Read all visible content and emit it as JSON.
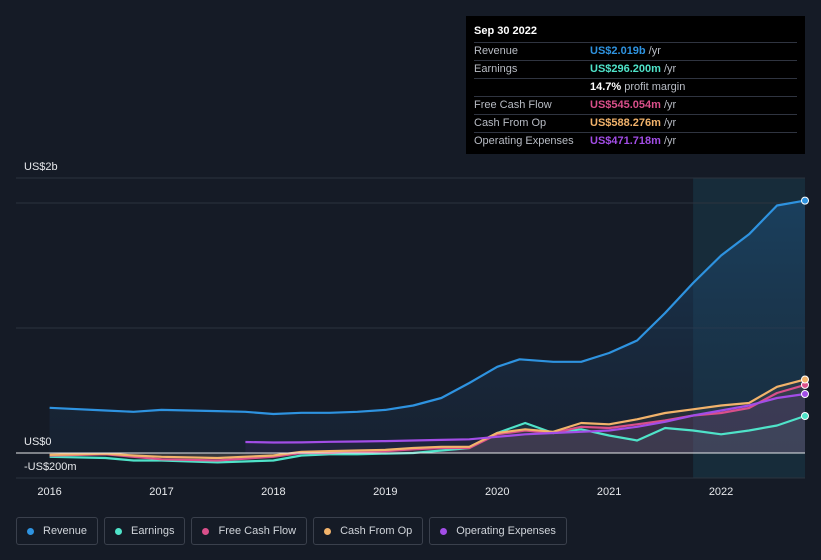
{
  "tooltip": {
    "date": "Sep 30 2022",
    "rows": [
      {
        "label": "Revenue",
        "value": "US$2.019b",
        "unit": "/yr",
        "color": "#2e93e0"
      },
      {
        "label": "Earnings",
        "value": "US$296.200m",
        "unit": "/yr",
        "color": "#4fe3c9"
      },
      {
        "label": "",
        "value": "14.7%",
        "unit": "profit margin",
        "color": "#ffffff"
      },
      {
        "label": "Free Cash Flow",
        "value": "US$545.054m",
        "unit": "/yr",
        "color": "#d94f8a"
      },
      {
        "label": "Cash From Op",
        "value": "US$588.276m",
        "unit": "/yr",
        "color": "#f2b36b"
      },
      {
        "label": "Operating Expenses",
        "value": "US$471.718m",
        "unit": "/yr",
        "color": "#a24de6"
      }
    ]
  },
  "chart_data": {
    "type": "line",
    "ylabel_top": "US$2b",
    "ylabel_zero": "US$0",
    "ylabel_bottom": "-US$200m",
    "xticks": [
      "2016",
      "2017",
      "2018",
      "2019",
      "2020",
      "2021",
      "2022"
    ],
    "xtick_values": [
      2016,
      2017,
      2018,
      2019,
      2020,
      2021,
      2022
    ],
    "xlim": [
      2015.7,
      2022.75
    ],
    "ylim": [
      -200,
      2200
    ],
    "forecast_start": 2021.75,
    "series": [
      {
        "name": "Revenue",
        "color": "#2e93e0",
        "fill": true,
        "x": [
          2016.0,
          2016.5,
          2016.75,
          2017.0,
          2017.5,
          2017.75,
          2018.0,
          2018.25,
          2018.5,
          2018.75,
          2019.0,
          2019.25,
          2019.5,
          2019.75,
          2020.0,
          2020.2,
          2020.5,
          2020.75,
          2021.0,
          2021.25,
          2021.5,
          2021.75,
          2022.0,
          2022.25,
          2022.5,
          2022.75
        ],
        "y": [
          362,
          340,
          330,
          345,
          335,
          330,
          312,
          322,
          322,
          330,
          345,
          380,
          440,
          560,
          690,
          750,
          730,
          730,
          800,
          900,
          1120,
          1360,
          1580,
          1750,
          1980,
          2019
        ]
      },
      {
        "name": "Earnings",
        "color": "#4fe3c9",
        "fill": false,
        "x": [
          2016.0,
          2016.5,
          2016.75,
          2017.0,
          2017.5,
          2018.0,
          2018.25,
          2018.5,
          2018.75,
          2019.0,
          2019.25,
          2019.5,
          2019.75,
          2020.0,
          2020.25,
          2020.5,
          2020.75,
          2021.0,
          2021.25,
          2021.5,
          2021.75,
          2022.0,
          2022.25,
          2022.5,
          2022.75
        ],
        "y": [
          -30,
          -40,
          -60,
          -60,
          -75,
          -60,
          -20,
          -10,
          -10,
          -5,
          0,
          20,
          40,
          160,
          240,
          160,
          190,
          140,
          100,
          200,
          180,
          150,
          180,
          220,
          296
        ]
      },
      {
        "name": "Free Cash Flow",
        "color": "#d94f8a",
        "fill": false,
        "x": [
          2016.0,
          2016.5,
          2016.75,
          2017.0,
          2017.5,
          2018.0,
          2018.25,
          2018.5,
          2018.75,
          2019.0,
          2019.25,
          2019.5,
          2019.75,
          2020.0,
          2020.25,
          2020.5,
          2020.75,
          2021.0,
          2021.25,
          2021.5,
          2021.75,
          2022.0,
          2022.25,
          2022.5,
          2022.75
        ],
        "y": [
          -20,
          -10,
          -30,
          -50,
          -60,
          -30,
          0,
          0,
          10,
          15,
          30,
          40,
          40,
          150,
          180,
          160,
          210,
          200,
          230,
          260,
          300,
          320,
          360,
          480,
          545
        ]
      },
      {
        "name": "Cash From Op",
        "color": "#f2b36b",
        "fill": false,
        "x": [
          2016.0,
          2016.5,
          2016.75,
          2017.0,
          2017.5,
          2018.0,
          2018.25,
          2018.5,
          2018.75,
          2019.0,
          2019.25,
          2019.5,
          2019.75,
          2020.0,
          2020.25,
          2020.5,
          2020.75,
          2021.0,
          2021.25,
          2021.5,
          2021.75,
          2022.0,
          2022.25,
          2022.5,
          2022.75
        ],
        "y": [
          -15,
          -5,
          -20,
          -30,
          -40,
          -20,
          10,
          15,
          20,
          25,
          40,
          50,
          50,
          160,
          190,
          170,
          240,
          230,
          270,
          320,
          350,
          380,
          400,
          530,
          588
        ]
      },
      {
        "name": "Operating Expenses",
        "color": "#a24de6",
        "fill": false,
        "x": [
          2017.75,
          2018.0,
          2018.25,
          2018.5,
          2018.75,
          2019.0,
          2019.25,
          2019.5,
          2019.75,
          2020.0,
          2020.25,
          2020.5,
          2020.75,
          2021.0,
          2021.25,
          2021.5,
          2021.75,
          2022.0,
          2022.25,
          2022.5,
          2022.75
        ],
        "y": [
          88,
          84,
          85,
          90,
          92,
          95,
          100,
          105,
          110,
          130,
          150,
          160,
          170,
          180,
          210,
          250,
          300,
          340,
          380,
          440,
          472
        ]
      }
    ]
  },
  "legend": {
    "items": [
      {
        "label": "Revenue",
        "color": "#2e93e0"
      },
      {
        "label": "Earnings",
        "color": "#4fe3c9"
      },
      {
        "label": "Free Cash Flow",
        "color": "#d94f8a"
      },
      {
        "label": "Cash From Op",
        "color": "#f2b36b"
      },
      {
        "label": "Operating Expenses",
        "color": "#a24de6"
      }
    ]
  }
}
